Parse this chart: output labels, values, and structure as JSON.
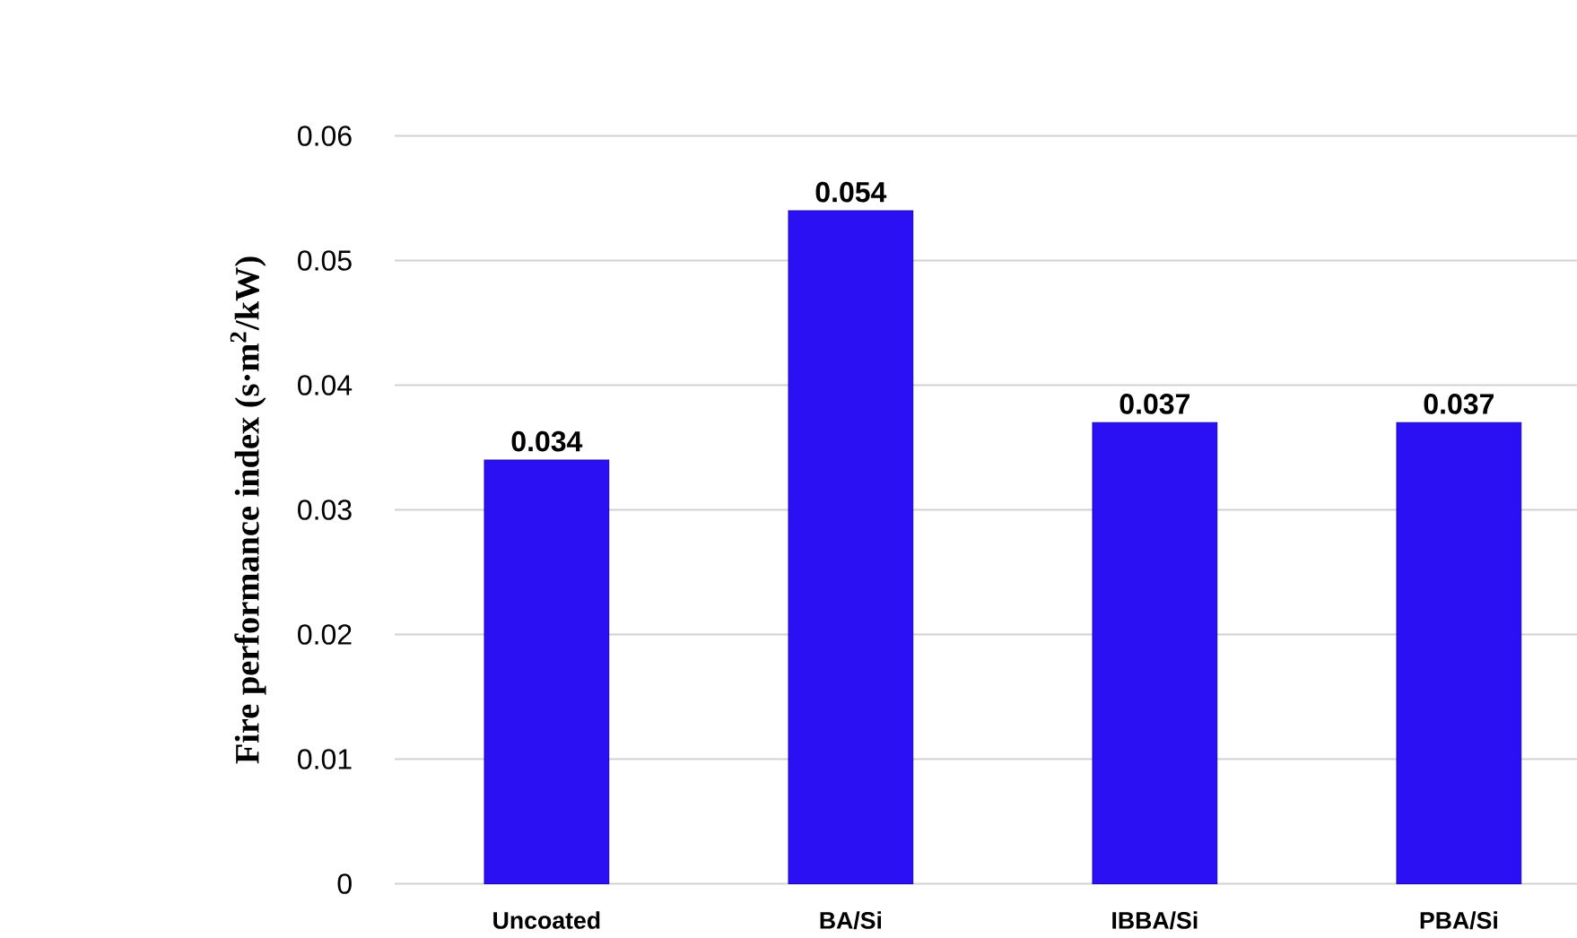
{
  "chart_data": {
    "type": "bar",
    "ylabel": "Fire performance index (s·m$^{2}$/kW)",
    "categories": [
      "Uncoated",
      "BA/Si",
      "IBBA/Si",
      "PBA/Si"
    ],
    "values": [
      0.034,
      0.054,
      0.037,
      0.037
    ],
    "color": "#2a10f2",
    "ylim": [
      0,
      0.06
    ],
    "yticks": [
      0,
      0.01,
      0.02,
      0.03,
      0.04,
      0.05,
      0.06
    ],
    "grid": "y",
    "data_labels": true
  }
}
